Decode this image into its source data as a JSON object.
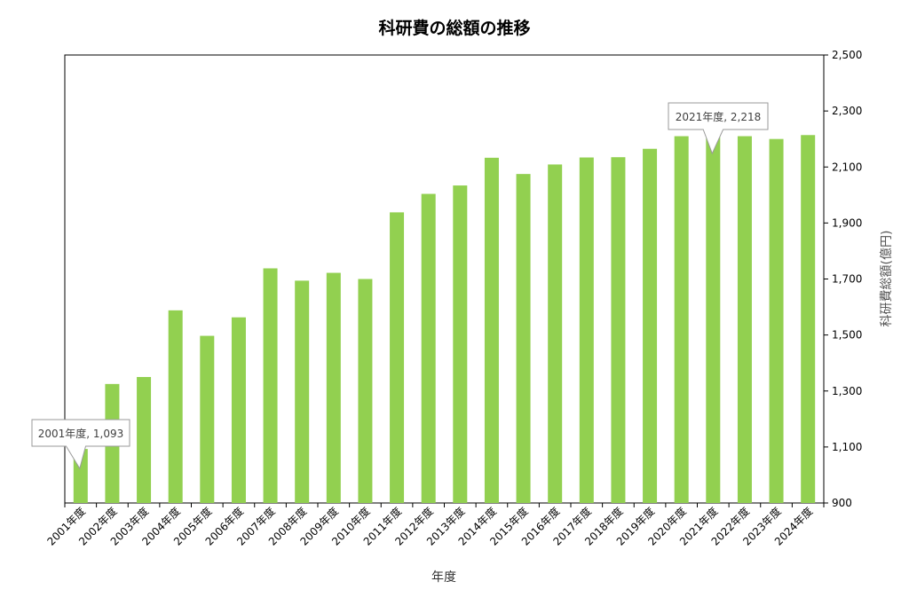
{
  "chart_data": {
    "type": "bar",
    "title": "科研費の総額の推移",
    "xlabel": "年度",
    "ylabel": "科研費総額(億円)",
    "ylim": [
      900,
      2500
    ],
    "yticks": [
      900,
      1100,
      1300,
      1500,
      1700,
      1900,
      2100,
      2300,
      2500
    ],
    "ytick_labels": [
      "900",
      "1,100",
      "1,300",
      "1,500",
      "1,700",
      "1,900",
      "2,100",
      "2,300",
      "2,500"
    ],
    "y_axis_side": "right",
    "grid": false,
    "legend": false,
    "bar_color": "#92d050",
    "categories": [
      "2001年度",
      "2002年度",
      "2003年度",
      "2004年度",
      "2005年度",
      "2006年度",
      "2007年度",
      "2008年度",
      "2009年度",
      "2010年度",
      "2011年度",
      "2012年度",
      "2013年度",
      "2014年度",
      "2015年度",
      "2016年度",
      "2017年度",
      "2018年度",
      "2019年度",
      "2020年度",
      "2021年度",
      "2022年度",
      "2023年度",
      "2024年度"
    ],
    "values": [
      1093,
      1325,
      1350,
      1588,
      1497,
      1563,
      1738,
      1694,
      1722,
      1700,
      1938,
      2004,
      2034,
      2133,
      2075,
      2109,
      2134,
      2135,
      2165,
      2210,
      2218,
      2210,
      2200,
      2214
    ],
    "annotations": [
      {
        "category": "2001年度",
        "text": "2001年度, 1,093"
      },
      {
        "category": "2021年度",
        "text": "2021年度, 2,218"
      }
    ]
  }
}
